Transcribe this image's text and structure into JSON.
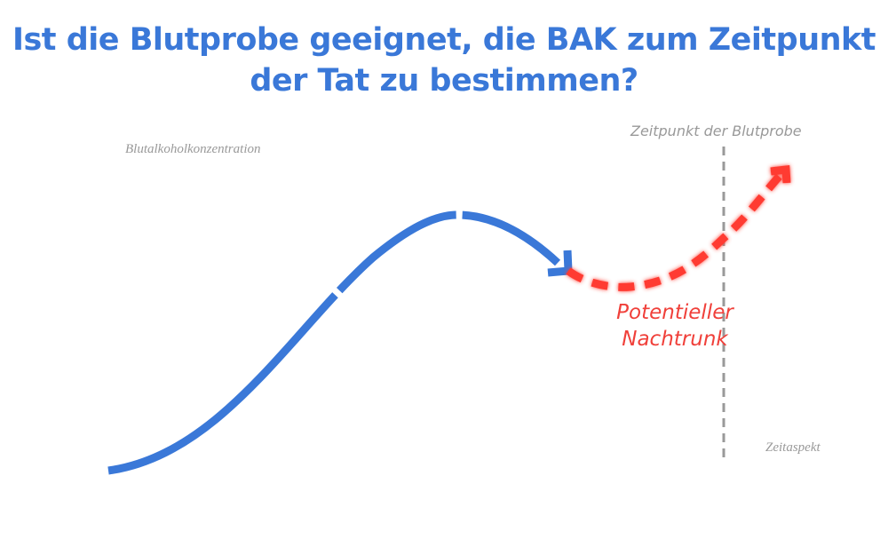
{
  "title": "Ist die Blutprobe geeignet, die BAK zum Zeitpunkt der Tat zu bestimmen?",
  "y_axis_label": "Blutalkoholkonzentration",
  "x_axis_label": "Zeitaspekt",
  "marker_label": "Zeitpunkt der Blutprobe",
  "annotation": {
    "line1": "Potentieller",
    "line2": "Nachtrunk"
  },
  "colors": {
    "title": "#3a78d8",
    "curve": "#3a78d8",
    "nachtrunk": "#f0403a",
    "marker": "#999999"
  }
}
